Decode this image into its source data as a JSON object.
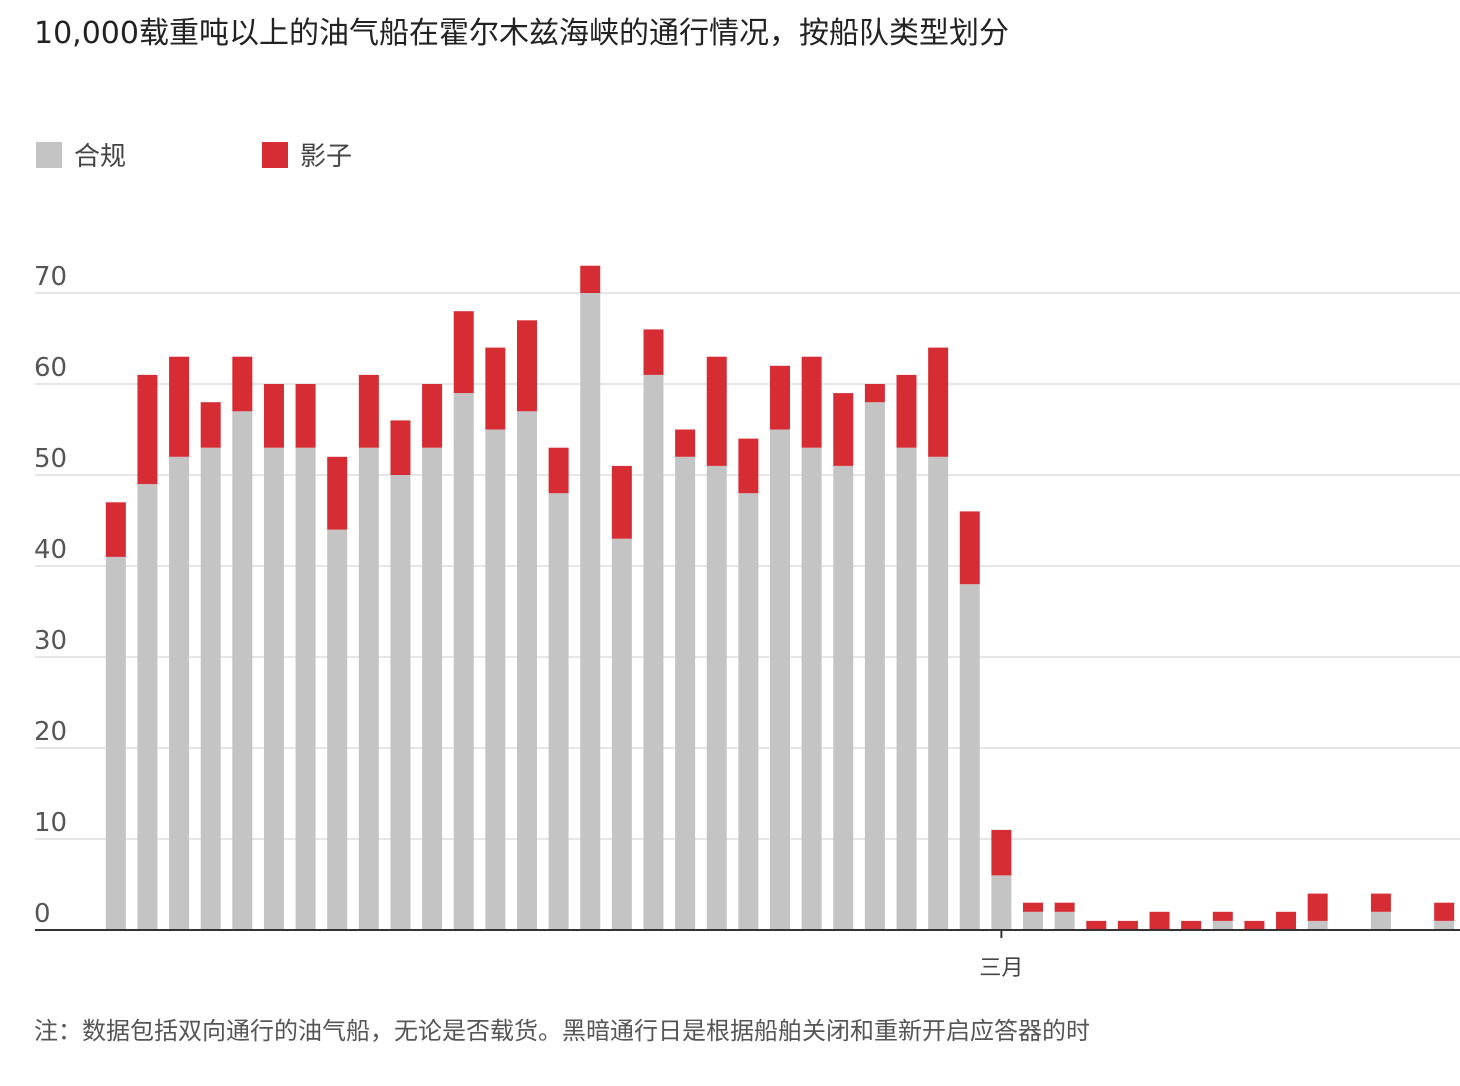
{
  "chart_data": {
    "type": "stacked_bar",
    "title": "10,000载重吨以上的油气船在霍尔木兹海峡的通行情况，按船队类型划分",
    "note": "注：数据包括双向通行的油气船，无论是否载货。黑暗通行日是根据船舶关闭和重新开启应答器的时",
    "categories": [
      null,
      null,
      null,
      null,
      null,
      null,
      null,
      null,
      null,
      null,
      null,
      null,
      null,
      null,
      null,
      null,
      null,
      null,
      null,
      null,
      null,
      null,
      null,
      null,
      null,
      null,
      null,
      null,
      "三月",
      null,
      null,
      null,
      null,
      null,
      null,
      null,
      null,
      null,
      null,
      null,
      null,
      null,
      null
    ],
    "series": [
      {
        "name": "合规",
        "color": "#c4c4c4",
        "values": [
          41,
          49,
          52,
          53,
          57,
          53,
          53,
          44,
          53,
          50,
          53,
          59,
          55,
          57,
          48,
          70,
          43,
          61,
          52,
          51,
          48,
          55,
          53,
          51,
          58,
          53,
          52,
          38,
          6,
          2,
          2,
          0,
          0,
          0,
          0,
          1,
          0,
          0,
          1,
          0,
          2,
          0,
          1
        ]
      },
      {
        "name": "影子",
        "color": "#d62d35",
        "values": [
          6,
          12,
          11,
          5,
          6,
          7,
          7,
          8,
          8,
          6,
          7,
          9,
          9,
          10,
          5,
          3,
          8,
          5,
          3,
          12,
          6,
          7,
          10,
          8,
          2,
          8,
          12,
          8,
          5,
          1,
          1,
          1,
          1,
          2,
          1,
          1,
          1,
          2,
          3,
          0,
          2,
          0,
          2
        ]
      }
    ],
    "ylim": [
      0,
      70
    ],
    "yticks": [
      0,
      10,
      20,
      30,
      40,
      50,
      60,
      70
    ],
    "grid": true
  }
}
